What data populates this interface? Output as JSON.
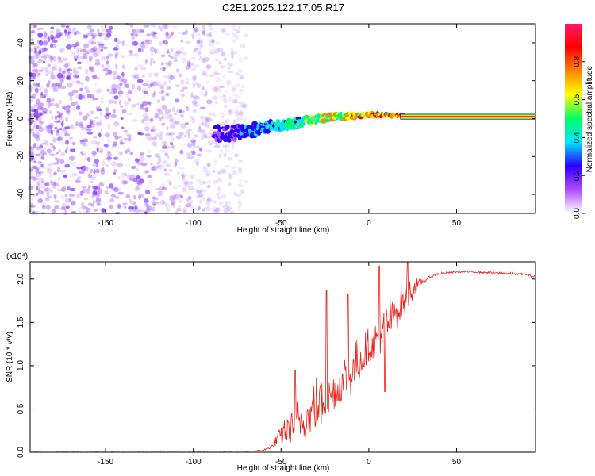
{
  "title": "C2E1.2025.122.17.05.R17",
  "chart_data": [
    {
      "type": "heatmap",
      "xlabel": "Height of straight line (km)",
      "ylabel": "Frequency (Hz)",
      "xlim": [
        -193,
        95
      ],
      "ylim": [
        -50,
        50
      ],
      "xticks": [
        -150,
        -100,
        -50,
        0,
        50
      ],
      "yticks": [
        -40,
        -20,
        0,
        20,
        40
      ],
      "colorbar": {
        "label": "Normalized spectral amplitude",
        "range": [
          0,
          1
        ],
        "ticks": [
          0.0,
          0.2,
          0.4,
          0.6,
          0.8
        ],
        "colormap": [
          "#ffffff",
          "#b44bff",
          "#2b00ff",
          "#00e5ff",
          "#00ff66",
          "#ffff00",
          "#ff8800",
          "#ff0000",
          "#ff1a66"
        ]
      },
      "features": [
        {
          "description": "sparse noise speckle",
          "x_range": [
            -193,
            -70
          ],
          "y_range": [
            -50,
            50
          ],
          "amplitude": 0.15
        },
        {
          "description": "signal band",
          "x": [
            -80,
            -60,
            -40,
            -20,
            0,
            20,
            95
          ],
          "y": [
            -8,
            -5,
            -2,
            1,
            2,
            1.5,
            1
          ],
          "amplitude": [
            0.25,
            0.4,
            0.55,
            0.7,
            0.85,
            0.95,
            1.0
          ]
        }
      ]
    },
    {
      "type": "line",
      "xlabel": "Height of straight line (km)",
      "ylabel": "SNR (10 * v/v)",
      "yscale_label": "(x10⁴)",
      "xlim": [
        -193,
        95
      ],
      "ylim": [
        0,
        2.2
      ],
      "xticks": [
        -150,
        -100,
        -50,
        0,
        50
      ],
      "yticks": [
        0.0,
        0.5,
        1.0,
        1.5,
        2.0
      ],
      "color": "#e8221c",
      "envelope": {
        "x": [
          -193,
          -70,
          -60,
          -55,
          -50,
          -45,
          -40,
          -35,
          -30,
          -25,
          -20,
          -15,
          -10,
          -5,
          0,
          5,
          10,
          15,
          20,
          25,
          30,
          35,
          40,
          50,
          60,
          70,
          80,
          90,
          95
        ],
        "base": [
          0.01,
          0.01,
          0.02,
          0.06,
          0.15,
          0.25,
          0.3,
          0.35,
          0.45,
          0.55,
          0.6,
          0.75,
          0.85,
          1.0,
          1.15,
          1.25,
          1.4,
          1.55,
          1.7,
          1.85,
          1.95,
          2.02,
          2.06,
          2.08,
          2.08,
          2.07,
          2.06,
          2.05,
          2.02
        ],
        "spread": [
          0.0,
          0.0,
          0.02,
          0.05,
          0.35,
          0.45,
          0.5,
          0.55,
          0.7,
          0.9,
          0.55,
          0.6,
          0.6,
          0.55,
          0.45,
          0.45,
          0.55,
          0.5,
          0.45,
          0.25,
          0.1,
          0.04,
          0.03,
          0.03,
          0.03,
          0.03,
          0.03,
          0.03,
          0.05
        ]
      },
      "peaks": [
        {
          "x": -42,
          "y": 0.95
        },
        {
          "x": -24,
          "y": 1.87
        },
        {
          "x": -12,
          "y": 1.82
        },
        {
          "x": 6,
          "y": 2.15
        },
        {
          "x": 9,
          "y": 0.7
        },
        {
          "x": 22,
          "y": 2.2
        }
      ]
    }
  ]
}
